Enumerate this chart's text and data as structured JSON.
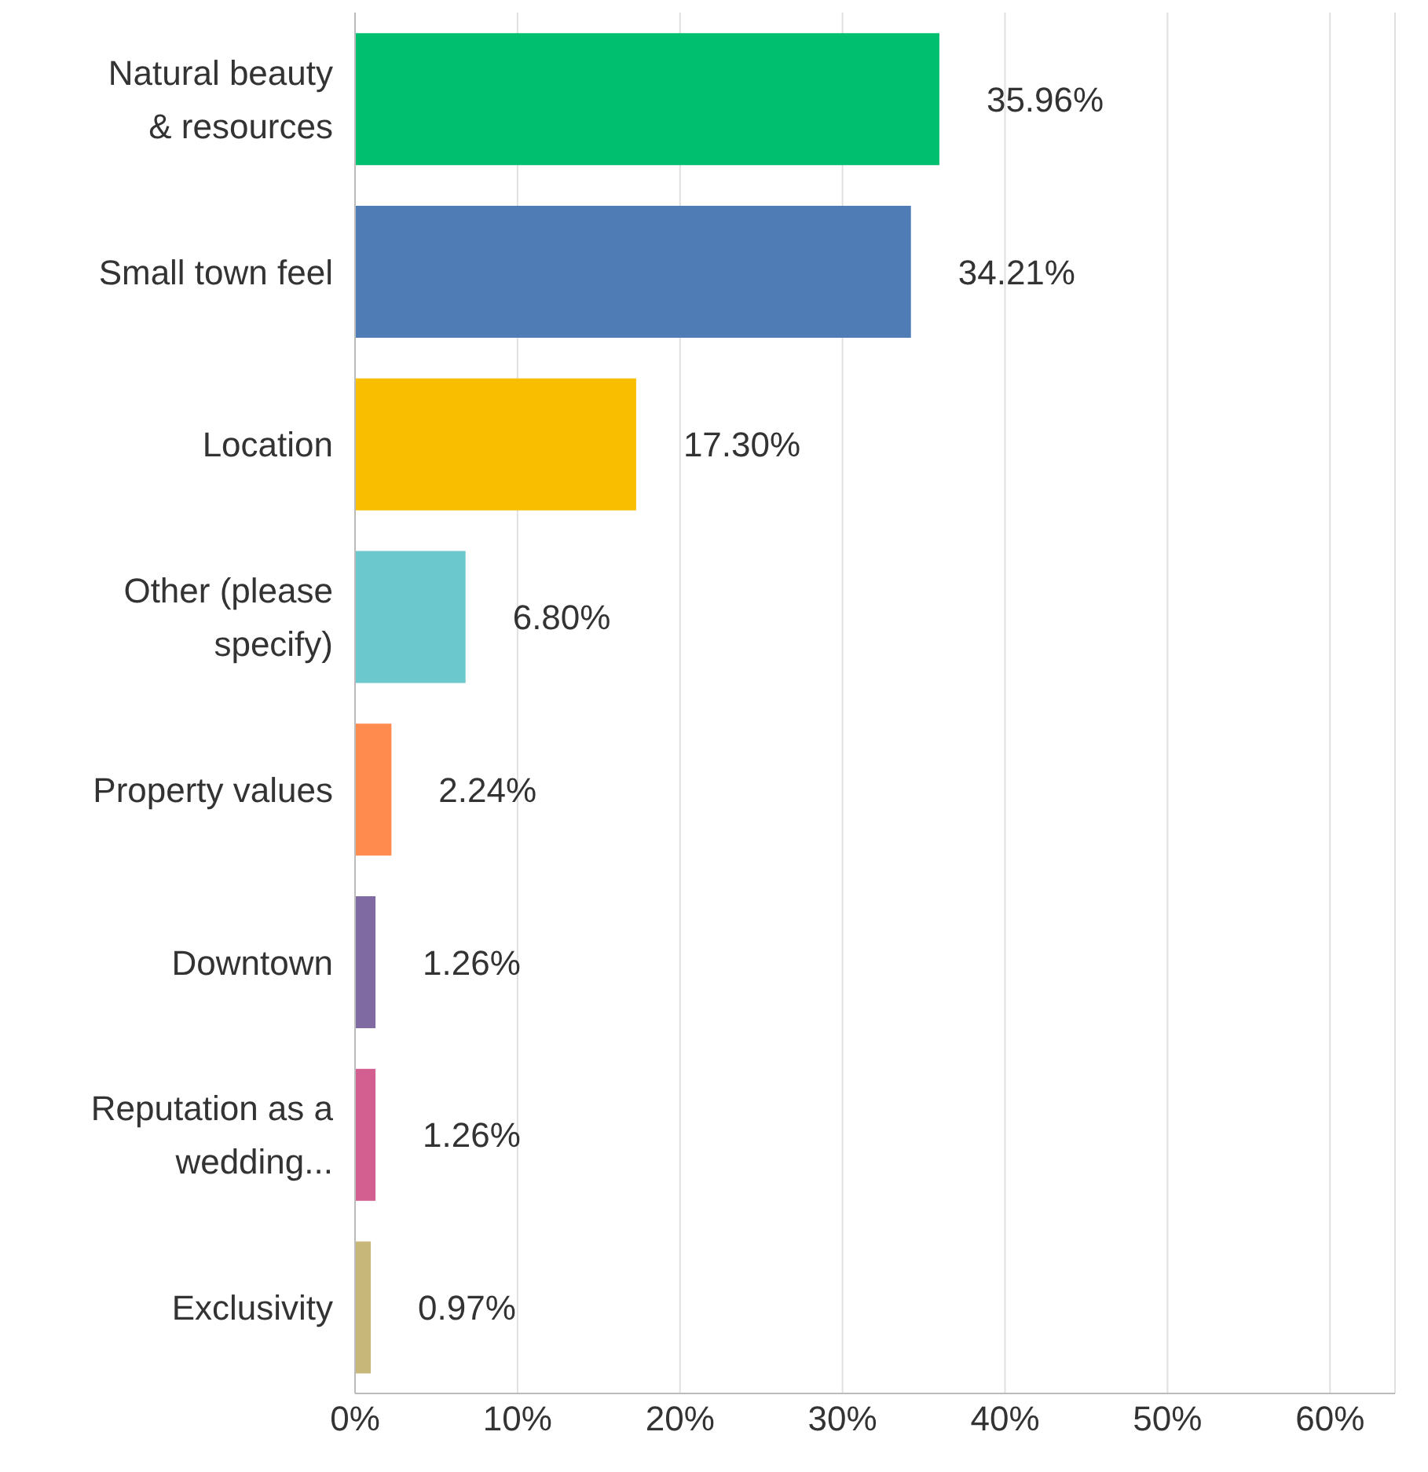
{
  "chart_data": {
    "type": "bar",
    "orientation": "horizontal",
    "categories": [
      "Natural beauty & resources",
      "Small town feel",
      "Location",
      "Other (please specify)",
      "Property values",
      "Downtown",
      "Reputation as a wedding...",
      "Exclusivity"
    ],
    "values": [
      35.96,
      34.21,
      17.3,
      6.8,
      2.24,
      1.26,
      1.26,
      0.97
    ],
    "colors": [
      "#00bf6f",
      "#507cb6",
      "#f9be00",
      "#6bc8cd",
      "#ff8b4f",
      "#7f6aa1",
      "#d25f90",
      "#c7b879"
    ],
    "value_labels": [
      "35.96%",
      "34.21%",
      "17.30%",
      "6.80%",
      "2.24%",
      "1.26%",
      "1.26%",
      "0.97%"
    ],
    "xlim": [
      0,
      64
    ],
    "xticks": [
      {
        "value": 0,
        "label": "0%"
      },
      {
        "value": 10,
        "label": "10%"
      },
      {
        "value": 20,
        "label": "20%"
      },
      {
        "value": 30,
        "label": "30%"
      },
      {
        "value": 40,
        "label": "40%"
      },
      {
        "value": 50,
        "label": "50%"
      },
      {
        "value": 60,
        "label": "60%"
      }
    ],
    "grid": "x"
  }
}
